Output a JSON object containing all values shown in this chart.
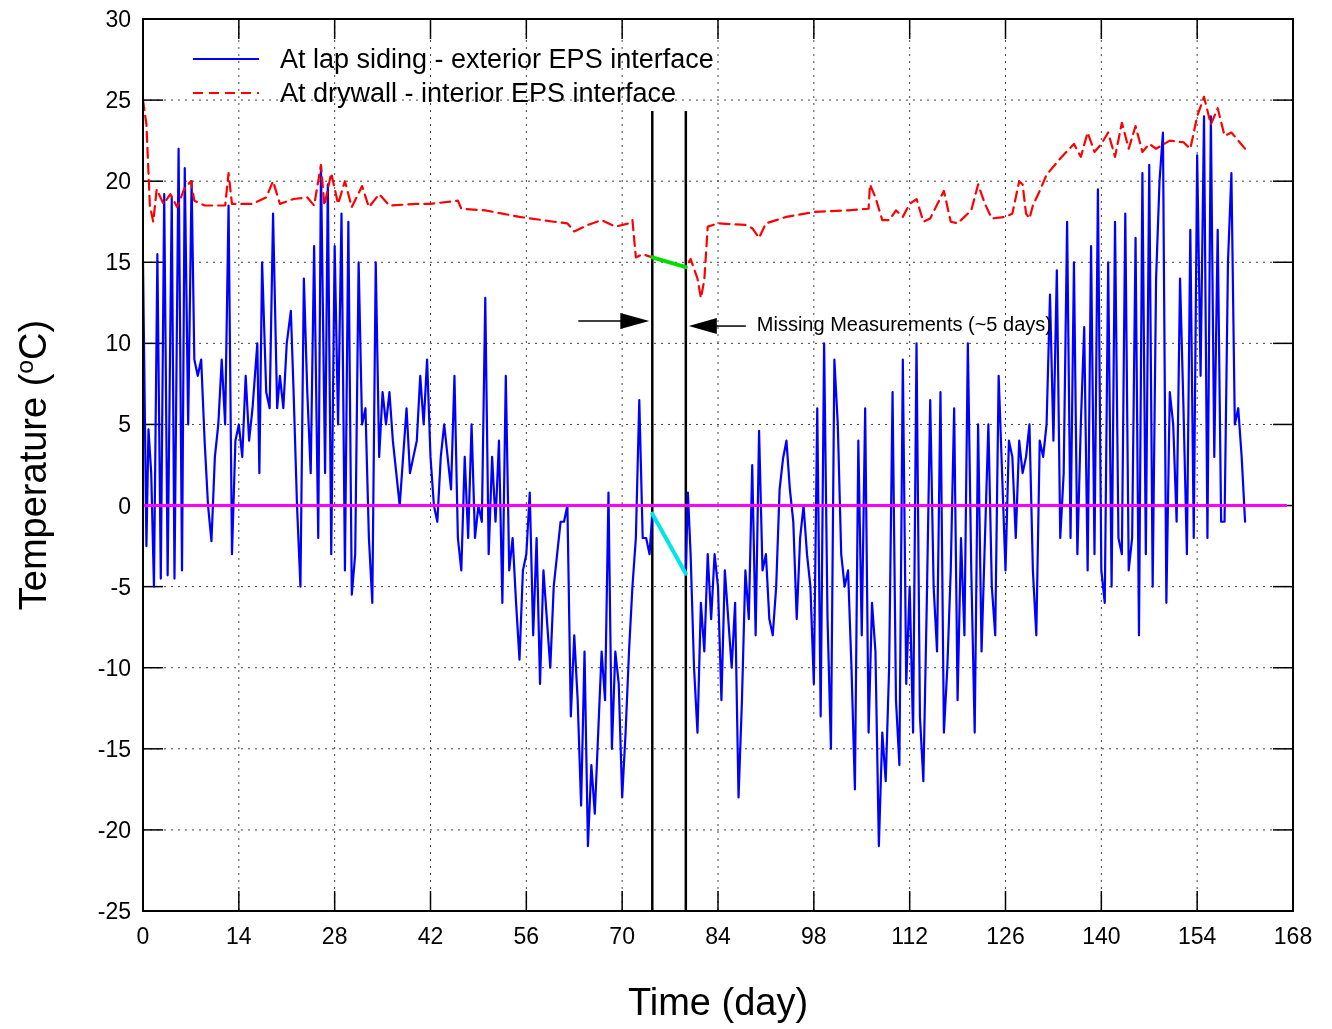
{
  "chart_data": {
    "type": "line",
    "xlabel": "Time (day)",
    "ylabel": "Temperature ($^{o}$C)",
    "xlim": [
      0,
      168
    ],
    "xticks": [
      0,
      14,
      28,
      42,
      56,
      70,
      84,
      98,
      112,
      126,
      140,
      154,
      168
    ],
    "ylim": [
      -25,
      30
    ],
    "yticks": [
      -25,
      -20,
      -15,
      -10,
      -5,
      0,
      5,
      10,
      15,
      20,
      25,
      30
    ],
    "grid": true,
    "legend": "top left",
    "series": [
      {
        "name": "At lap siding - exterior EPS interface",
        "color": "#0000ff",
        "line_style": "solid",
        "x": [
          0,
          0.5,
          0.8,
          1.2,
          1.6,
          2.1,
          2.6,
          3.1,
          3.6,
          4.2,
          4.6,
          5.2,
          5.7,
          6.1,
          6.6,
          7.1,
          7.5,
          8,
          8.5,
          9,
          9.5,
          10,
          10.5,
          11,
          11.5,
          12,
          12.5,
          13,
          13.5,
          14,
          14.5,
          15,
          15.5,
          16,
          16.7,
          17,
          17.4,
          18,
          18.5,
          19,
          19.6,
          20,
          20.5,
          21,
          21.6,
          22,
          22.5,
          23,
          23.5,
          24,
          24.5,
          25,
          25.6,
          26,
          26.6,
          27,
          27.5,
          28,
          28.5,
          29,
          29.5,
          30,
          30.5,
          31,
          31.5,
          32,
          32.5,
          33,
          33.5,
          34,
          34.5,
          35,
          35.5,
          36,
          36.5,
          37,
          37.5,
          38,
          38.5,
          39,
          40,
          40.5,
          41,
          41.5,
          42,
          42.5,
          43,
          43.5,
          44,
          45,
          45.5,
          46,
          46.5,
          47,
          47.5,
          48,
          48.5,
          49,
          49.5,
          50,
          50.5,
          51,
          51.5,
          52,
          52.5,
          53,
          53.5,
          54,
          54.5,
          55,
          55.5,
          56,
          56.5,
          57,
          57.5,
          58,
          58.5,
          59,
          59.5,
          60,
          60.5,
          61,
          61.5,
          62,
          62.5,
          63,
          63.5,
          64,
          64.5,
          65,
          65.5,
          66,
          66.5,
          67,
          67.5,
          68,
          68.5,
          69,
          69.5,
          70,
          70.5,
          71,
          71.5,
          72,
          72.5,
          73,
          73.5,
          74,
          74.4,
          79.3,
          79.6,
          80,
          80.5,
          81,
          81.5,
          82,
          82.5,
          83,
          83.5,
          84,
          84.5,
          85,
          85.5,
          86,
          86.5,
          87,
          87.5,
          88,
          88.5,
          89,
          89.5,
          90,
          90.5,
          91,
          91.5,
          92,
          92.5,
          93,
          93.5,
          94,
          94.5,
          95,
          95.5,
          96,
          96.5,
          97,
          97.5,
          98,
          98.5,
          99,
          99.5,
          100,
          100.5,
          101,
          101.5,
          102,
          102.5,
          103,
          103.5,
          104,
          104.5,
          105,
          105.5,
          106,
          106.5,
          107,
          107.5,
          108,
          108.5,
          109,
          109.5,
          110,
          110.5,
          111,
          111.5,
          112,
          112.5,
          113,
          113.5,
          114,
          114.5,
          115,
          115.5,
          116,
          116.5,
          117,
          117.5,
          118,
          118.5,
          119,
          119.5,
          120,
          120.5,
          121,
          121.5,
          122,
          122.5,
          123,
          123.5,
          124,
          124.5,
          125,
          125.5,
          126,
          126.5,
          127,
          127.5,
          128,
          128.5,
          129,
          129.5,
          130,
          130.5,
          131,
          131.5,
          132,
          132.5,
          133,
          133.5,
          134,
          134.5,
          135,
          135.5,
          136,
          136.5,
          137,
          137.5,
          138,
          138.5,
          139,
          139.5,
          140,
          140.5,
          141,
          141.5,
          142,
          142.5,
          143,
          143.5,
          144,
          144.5,
          145,
          145.5,
          146,
          146.5,
          147,
          147.5,
          148,
          148.5,
          149,
          149.5,
          150,
          150.5,
          151,
          151.5,
          152,
          152.5,
          153,
          153.5,
          154,
          154.5,
          155,
          155.5,
          156,
          156.5,
          157,
          157.5,
          158,
          158.5,
          159,
          159.5,
          160,
          160.5,
          161
        ],
        "values": [
          15,
          -2.5,
          4.7,
          2,
          -5,
          15.5,
          -4.5,
          19.2,
          -4.3,
          19,
          -4.5,
          22,
          -4,
          20.8,
          5,
          20,
          9,
          8,
          9,
          4,
          0,
          -2.2,
          3,
          5,
          9,
          5,
          18.5,
          -3,
          4,
          5,
          3,
          8,
          4,
          6,
          10,
          2,
          15,
          7,
          6,
          18,
          6,
          8,
          6,
          10,
          12,
          7,
          0,
          -5,
          14,
          7,
          2,
          16,
          -2,
          20.9,
          2,
          19.8,
          -3,
          16,
          5,
          18,
          -4,
          17.5,
          -5.5,
          -3,
          15,
          5,
          6,
          -2,
          -6,
          15,
          3,
          7,
          5,
          7,
          4,
          2,
          0,
          3,
          6,
          2,
          4,
          8,
          5,
          9,
          3,
          0,
          -1,
          3,
          5,
          1,
          8,
          -2,
          -4,
          3,
          -2,
          5,
          -2,
          0,
          -1,
          12.8,
          -3,
          3,
          -1,
          4,
          -6,
          8,
          -4,
          -2,
          -6,
          -9.5,
          -4,
          -3,
          0.8,
          -8,
          -2,
          -11,
          -4,
          -7,
          -10,
          -5,
          -3,
          -1,
          -1,
          0,
          -13,
          -8,
          -12,
          -18.5,
          -9,
          -21,
          -16,
          -19,
          -14,
          -9,
          -12,
          0.8,
          -15,
          -9,
          -11,
          -18,
          -14,
          -9,
          -5,
          -2,
          6.5,
          -2,
          -2,
          -3,
          -0.5,
          -4.2,
          0.8,
          -3,
          -10,
          -14,
          -6,
          -9,
          -3,
          -7,
          -3,
          -5,
          -12,
          -4,
          -7,
          -10,
          -6,
          -18,
          -12,
          -4,
          -7,
          2.5,
          -8,
          4.6,
          -4,
          -3,
          -7,
          -8,
          -5,
          1,
          2.9,
          4,
          1,
          -1,
          -7,
          -2,
          0,
          -3,
          -5,
          -11,
          6,
          -13,
          10,
          -7,
          -15,
          9,
          5,
          -3,
          -5,
          -4,
          -10,
          -17.5,
          4,
          -8,
          6,
          -14,
          -6,
          -9,
          -21,
          -14,
          -17,
          -10,
          7,
          -12,
          -16,
          9,
          -11,
          -5,
          -14,
          10,
          -13,
          -17,
          -6,
          6.5,
          -5,
          -9,
          7,
          -14,
          -10,
          -4,
          6,
          -12,
          -2,
          -8,
          10,
          -4,
          -14,
          5,
          -9,
          -2,
          5,
          -5,
          -8,
          8,
          2,
          -4,
          4,
          3,
          -2,
          4,
          2,
          3,
          5,
          -4,
          -8,
          4,
          3,
          5,
          13,
          4,
          14.5,
          -2,
          2,
          17.5,
          -2,
          15,
          -3,
          5,
          11,
          -4,
          16,
          -3,
          19.5,
          -4,
          -6,
          15,
          -5,
          17.5,
          -2,
          -3,
          18,
          -4,
          -2,
          16.5,
          -8,
          20.5,
          -3,
          21,
          -5,
          14,
          20,
          23,
          -6,
          7,
          5,
          -1,
          14,
          6,
          -3,
          17,
          -2,
          21.6,
          8,
          24,
          -2,
          24,
          3,
          17,
          -1,
          -1,
          15,
          20.5,
          5,
          6,
          3,
          -1
        ]
      },
      {
        "name": "At drywall - interior EPS interface",
        "color": "#ff0000",
        "line_style": "dashed",
        "x": [
          0,
          0.5,
          1,
          1.5,
          2,
          3,
          4,
          5,
          6,
          7,
          7.5,
          9,
          12,
          12.5,
          13,
          16,
          18,
          19,
          20,
          22,
          24,
          25,
          26,
          26.5,
          27.5,
          28.5,
          29.5,
          30.5,
          32,
          33,
          34.5,
          36,
          40,
          42,
          46,
          46.5,
          50,
          55,
          60,
          62,
          63,
          65,
          67,
          69,
          71,
          71.5,
          72,
          73,
          74.4,
          79.3,
          80,
          81,
          81.5,
          82,
          82.5,
          84,
          88,
          89,
          90,
          91,
          94,
          98,
          103,
          106,
          106.2,
          107,
          108,
          109,
          110,
          111,
          112,
          113,
          114,
          115,
          117,
          118,
          119,
          120,
          121,
          122,
          123,
          124,
          126,
          127,
          128,
          128.5,
          129,
          129.5,
          130,
          131,
          132,
          134,
          136,
          137,
          138,
          139,
          140,
          141,
          142,
          143,
          144,
          145,
          146,
          147,
          148,
          150,
          152,
          153,
          154,
          155,
          156,
          157,
          158,
          159,
          160,
          161
        ],
        "values": [
          25,
          23.5,
          18.5,
          17.5,
          19.5,
          18.6,
          19.2,
          18.4,
          19.5,
          20,
          18.8,
          18.5,
          18.5,
          20.5,
          18.6,
          18.6,
          19,
          20,
          18.6,
          18.9,
          19,
          18.5,
          21,
          18.5,
          20.5,
          18.6,
          20,
          18.4,
          19.7,
          18.4,
          19.2,
          18.5,
          18.6,
          18.6,
          18.8,
          18.3,
          18.2,
          17.8,
          17.5,
          17.4,
          16.9,
          17.3,
          17.6,
          17.2,
          17.4,
          17.6,
          15.3,
          15.5,
          15.3,
          14.7,
          15.2,
          14,
          12.8,
          13.9,
          17.2,
          17.4,
          17.3,
          17.1,
          16.5,
          17.4,
          17.8,
          18.1,
          18.2,
          18.3,
          19.8,
          19,
          17.6,
          17.6,
          18.2,
          17.8,
          18.6,
          18.9,
          17.5,
          17.7,
          19.4,
          17.5,
          17.4,
          17.8,
          18.2,
          19.8,
          18.6,
          17.7,
          17.8,
          18,
          20,
          19.8,
          18,
          17.7,
          18.5,
          19.4,
          20.4,
          21.4,
          22.3,
          21.5,
          23,
          21.8,
          22.3,
          23,
          21.5,
          23.6,
          22,
          23.4,
          21.8,
          22.3,
          22,
          22.5,
          22.4,
          22,
          24,
          25.2,
          23.5,
          24.5,
          22.8,
          23,
          22.5,
          22
        ]
      },
      {
        "color": "#00e5e5",
        "line_style": "solid",
        "x": [
          74.4,
          79.3
        ],
        "values": [
          -0.5,
          -4.2
        ]
      },
      {
        "color": "#00dd00",
        "line_style": "solid",
        "x": [
          74.4,
          79.3
        ],
        "values": [
          15.3,
          14.7
        ]
      }
    ],
    "ref_lines": [
      {
        "axis": "y",
        "value": 0,
        "color": "#ff00ff"
      },
      {
        "axis": "x",
        "value": 74.4,
        "color": "#000000"
      },
      {
        "axis": "x",
        "value": 79.3,
        "color": "#000000"
      }
    ],
    "annotations": [
      "Missing Measurements (~5 days)"
    ]
  }
}
